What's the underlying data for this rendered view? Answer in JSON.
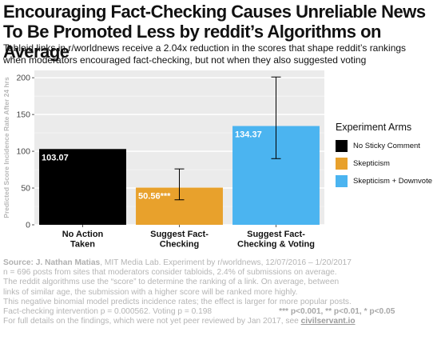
{
  "title_lines": [
    "Encouraging Fact-Checking Causes Unreliable News",
    "To Be Promoted Less by reddit’s Algorithms on Average"
  ],
  "subtitle_lines": [
    "Tabloid links in r/worldnews receive a 2.04x reduction in the scores that shape reddit’s rankings",
    "when moderators encouraged fact-checking, but not when they also suggested voting"
  ],
  "legend": {
    "title": "Experiment Arms",
    "items": [
      {
        "label": "No Sticky Comment",
        "color": "#000000"
      },
      {
        "label": "Skepticism",
        "color": "#e8a12c"
      },
      {
        "label": "Skepticism + Downvote",
        "color": "#4bb4f0"
      }
    ]
  },
  "chart_data": {
    "type": "bar",
    "ylabel": "Predicted Score Incidence Rate After 24 hrs",
    "ylim": [
      0,
      210
    ],
    "yticks": [
      0,
      50,
      100,
      150,
      200
    ],
    "grid": true,
    "legend_position": "right",
    "categories": [
      [
        "No Action",
        "Taken"
      ],
      [
        "Suggest Fact-",
        "Checking"
      ],
      [
        "Suggest Fact-",
        "Checking & Voting"
      ]
    ],
    "values": [
      103.07,
      50.56,
      134.37
    ],
    "value_labels": [
      "103.07",
      "50.56***",
      "134.37"
    ],
    "error_bars": [
      null,
      [
        34,
        76
      ],
      [
        90,
        201
      ]
    ],
    "colors": [
      "#000000",
      "#e8a12c",
      "#4bb4f0"
    ]
  },
  "footer": {
    "source_label": "Source:",
    "source_author": "J. Nathan Matias",
    "source_rest": ", MIT Media Lab. Experiment by r/worldnews, 12/07/2016 – 1/20/2017",
    "lines": [
      "n = 696 posts from sites that moderators consider tabloids, 2.4% of submissions on average.",
      "The reddit algorithms use the “score” to determine the ranking of a link. On average, between",
      "links of similar age, the submission with a higher score will be ranked more highly.",
      "This negative binomial model predicts incidence rates; the effect is larger for more popular posts."
    ],
    "pvalues": "Fact-checking intervention p = 0.000562. Voting p = 0.198",
    "sig_key": "*** p<0.001, ** p<0.01, * p<0.05",
    "final_text": "For full details on the findings, which were not yet peer reviewed by Jan 2017, see ",
    "link_text": "civilservant.io"
  }
}
